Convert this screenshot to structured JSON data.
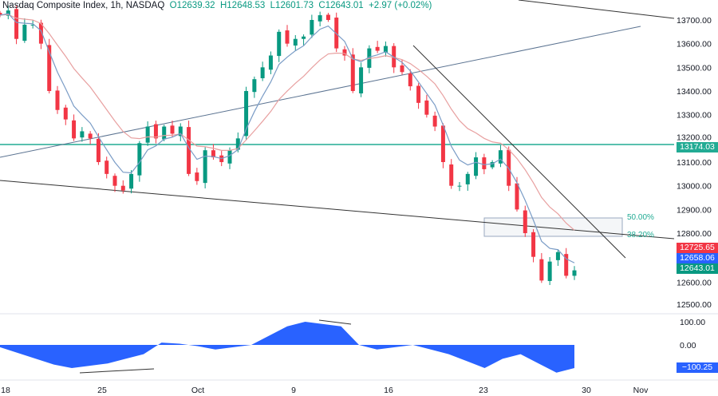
{
  "header": {
    "title": "Nasdaq Composite Index, 1h, NASDAQ",
    "open": "O12639.32",
    "high": "H12648.53",
    "low": "L12601.73",
    "close": "C12643.01",
    "change": "+2.97 (+0.02%)"
  },
  "price_tags": {
    "level": "13174.03",
    "red": "12725.65",
    "blue": "12658.06",
    "last": "12643.01",
    "osc": "−100.25"
  },
  "fib": {
    "upper": "50.00%",
    "lower": "38.20%"
  },
  "colors": {
    "up": "#089981",
    "down": "#f23645",
    "level": "#22ab94",
    "osc": "#2962ff",
    "ema_fast": "#7a9cc6",
    "ema_slow": "#e8a0a0"
  },
  "chart_data": {
    "type": "candlestick",
    "yticks": [
      "13700.00",
      "13600.00",
      "13500.00",
      "13400.00",
      "13300.00",
      "13200.00",
      "13100.00",
      "13000.00",
      "12900.00",
      "12800.00",
      "12700.00",
      "12600.00",
      "12500.00"
    ],
    "xticks": [
      "18",
      "25",
      "Oct",
      "9",
      "16",
      "23",
      "30",
      "Nov"
    ],
    "ylim": [
      12450,
      13780
    ],
    "horizontal_level": 13174.03,
    "closes": [
      13720,
      13740,
      13620,
      13680,
      13680,
      13600,
      13400,
      13320,
      13280,
      13200,
      13230,
      13200,
      13100,
      13050,
      13000,
      12980,
      13050,
      13180,
      13250,
      13200,
      13250,
      13220,
      13250,
      13050,
      13020,
      13150,
      13120,
      13100,
      13150,
      13200,
      13400,
      13450,
      13500,
      13550,
      13650,
      13600,
      13620,
      13630,
      13700,
      13720,
      13700,
      13580,
      13550,
      13400,
      13500,
      13580,
      13570,
      13590,
      13500,
      13480,
      13420,
      13350,
      13300,
      13250,
      13100,
      13000,
      13000,
      13050,
      13120,
      13070,
      13100,
      13150,
      13000,
      12900,
      12800,
      12700,
      12600,
      12680,
      12720,
      12620,
      12643
    ],
    "oscillator": {
      "yticks": [
        "100.00",
        "0.00"
      ],
      "values": [
        -10,
        -35,
        -60,
        -85,
        -100,
        -90,
        -80,
        -60,
        -40,
        10,
        5,
        -5,
        -20,
        -10,
        0,
        40,
        80,
        100,
        90,
        80,
        0,
        -20,
        -10,
        0,
        -20,
        -40,
        -70,
        -100,
        -60,
        -40,
        -80,
        -120,
        -100
      ]
    }
  }
}
